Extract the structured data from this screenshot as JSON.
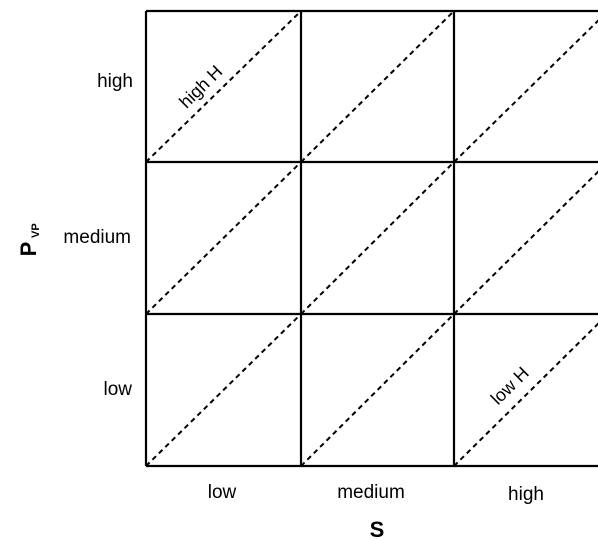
{
  "y_axis": {
    "label": "P",
    "subscript": "VP",
    "ticks": [
      "high",
      "medium",
      "low"
    ]
  },
  "x_axis": {
    "label": "S",
    "ticks": [
      "low",
      "medium",
      "high"
    ]
  },
  "diagonals": {
    "upper_label": "high H",
    "lower_label": "low H"
  }
}
